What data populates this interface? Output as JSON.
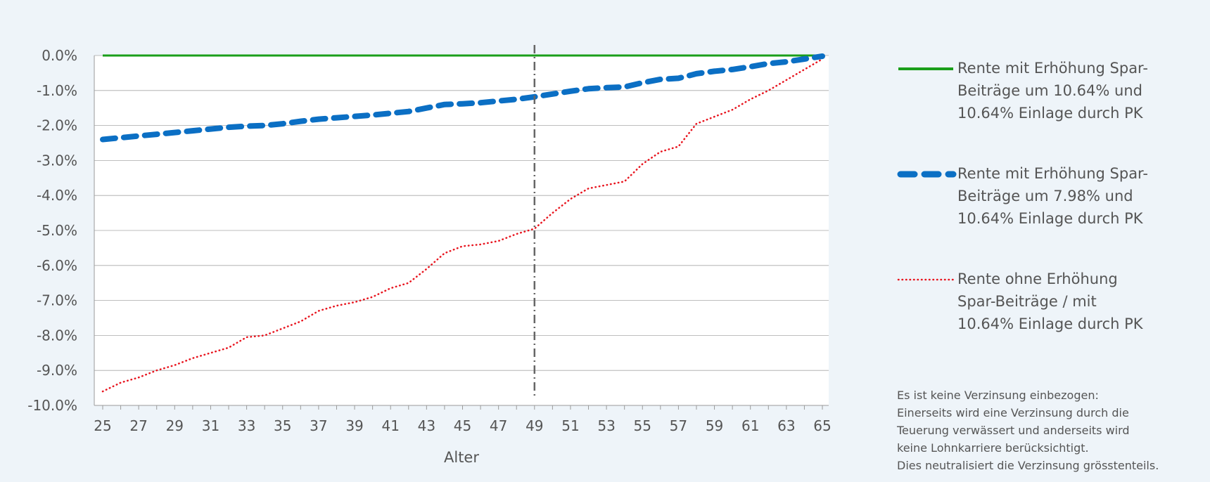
{
  "chart_data": {
    "type": "line",
    "xlabel": "Alter",
    "ylabel": "",
    "x": [
      25,
      26,
      27,
      28,
      29,
      30,
      31,
      32,
      33,
      34,
      35,
      36,
      37,
      38,
      39,
      40,
      41,
      42,
      43,
      44,
      45,
      46,
      47,
      48,
      49,
      50,
      51,
      52,
      53,
      54,
      55,
      56,
      57,
      58,
      59,
      60,
      61,
      62,
      63,
      64,
      65
    ],
    "x_ticks": [
      "25",
      "27",
      "29",
      "31",
      "33",
      "35",
      "37",
      "39",
      "41",
      "43",
      "45",
      "47",
      "49",
      "51",
      "53",
      "55",
      "57",
      "59",
      "61",
      "63",
      "65"
    ],
    "xlim": [
      25,
      65
    ],
    "ylim": [
      -10.0,
      0.0
    ],
    "y_ticks": [
      "0.0%",
      "-1.0%",
      "-2.0%",
      "-3.0%",
      "-4.0%",
      "-5.0%",
      "-6.0%",
      "-7.0%",
      "-8.0%",
      "-9.0%",
      "-10.0%"
    ],
    "y_tick_values": [
      0,
      -1,
      -2,
      -3,
      -4,
      -5,
      -6,
      -7,
      -8,
      -9,
      -10
    ],
    "grid": true,
    "legend_position": "right",
    "vertical_marker_x": 49,
    "series": [
      {
        "name": "Rente mit Erhöhung Spar-Beiträge um 10.64% und 10.64% Einlage durch PK",
        "style": "solid",
        "color": "#1a9e1a",
        "values": [
          0,
          0,
          0,
          0,
          0,
          0,
          0,
          0,
          0,
          0,
          0,
          0,
          0,
          0,
          0,
          0,
          0,
          0,
          0,
          0,
          0,
          0,
          0,
          0,
          0,
          0,
          0,
          0,
          0,
          0,
          0,
          0,
          0,
          0,
          0,
          0,
          0,
          0,
          0,
          0,
          0
        ]
      },
      {
        "name": "Rente mit Erhöhung Spar-Beiträge um 7.98% und 10.64% Einlage durch PK",
        "style": "dashed",
        "color": "#0b6fc4",
        "values": [
          -2.4,
          -2.35,
          -2.3,
          -2.25,
          -2.2,
          -2.15,
          -2.1,
          -2.05,
          -2.02,
          -2.0,
          -1.95,
          -1.88,
          -1.82,
          -1.78,
          -1.74,
          -1.7,
          -1.65,
          -1.6,
          -1.5,
          -1.4,
          -1.38,
          -1.35,
          -1.3,
          -1.25,
          -1.18,
          -1.1,
          -1.02,
          -0.95,
          -0.92,
          -0.9,
          -0.78,
          -0.68,
          -0.65,
          -0.52,
          -0.45,
          -0.4,
          -0.32,
          -0.23,
          -0.18,
          -0.1,
          -0.02
        ]
      },
      {
        "name": "Rente ohne Erhöhung Spar-Beiträge / mit 10.64% Einlage durch PK",
        "style": "dotted",
        "color": "#e8141e",
        "values": [
          -9.6,
          -9.35,
          -9.2,
          -9.0,
          -8.85,
          -8.65,
          -8.5,
          -8.35,
          -8.05,
          -8.0,
          -7.8,
          -7.6,
          -7.3,
          -7.15,
          -7.05,
          -6.9,
          -6.65,
          -6.5,
          -6.1,
          -5.65,
          -5.45,
          -5.4,
          -5.3,
          -5.1,
          -4.95,
          -4.5,
          -4.1,
          -3.8,
          -3.7,
          -3.6,
          -3.1,
          -2.75,
          -2.6,
          -1.95,
          -1.75,
          -1.55,
          -1.25,
          -1.0,
          -0.7,
          -0.4,
          -0.1
        ]
      }
    ]
  },
  "legend": [
    {
      "lines": [
        "Rente mit Erhöhung Spar-",
        "Beiträge um 10.64% und",
        "10.64% Einlage durch PK"
      ]
    },
    {
      "lines": [
        "Rente mit Erhöhung Spar-",
        "Beiträge um 7.98% und",
        "10.64% Einlage durch PK"
      ]
    },
    {
      "lines": [
        "Rente ohne Erhöhung",
        "Spar-Beiträge / mit",
        "10.64% Einlage durch PK"
      ]
    }
  ],
  "note": {
    "lines": [
      "Es ist keine Verzinsung einbezogen:",
      "Einerseits wird eine Verzinsung durch die",
      "Teuerung verwässert und anderseits wird",
      "keine Lohnkarriere berücksichtigt.",
      "Dies neutralisiert die Verzinsung grösstenteils."
    ]
  }
}
